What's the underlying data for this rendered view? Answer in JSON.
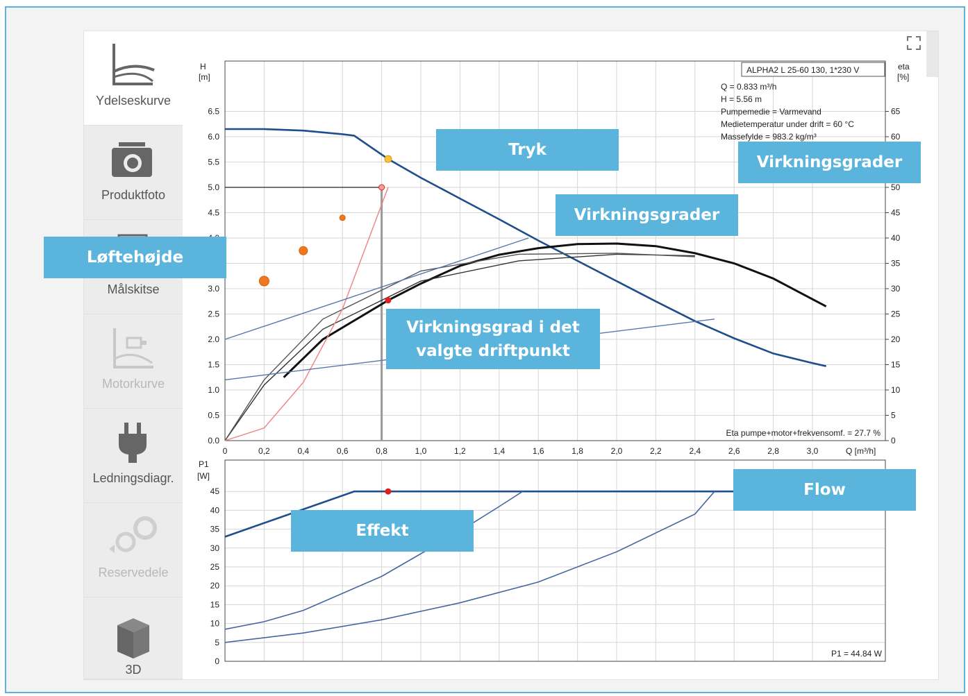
{
  "sidebar": {
    "items": [
      {
        "label": "Ydelseskurve",
        "icon": "performance-curve-icon",
        "state": "active"
      },
      {
        "label": "Produktfoto",
        "icon": "camera-icon",
        "state": "normal"
      },
      {
        "label": "Målskitse",
        "icon": "dimension-sketch-icon",
        "state": "normal"
      },
      {
        "label": "Motorkurve",
        "icon": "motor-curve-icon",
        "state": "disabled"
      },
      {
        "label": "Ledningsdiagr.",
        "icon": "plug-icon",
        "state": "normal"
      },
      {
        "label": "Reservedele",
        "icon": "spare-parts-icon",
        "state": "disabled"
      },
      {
        "label": "3D",
        "icon": "cube-3d-icon",
        "state": "normal"
      }
    ]
  },
  "chart": {
    "pump_name": "ALPHA2 L 25-60 130, 1*230 V",
    "info_lines": [
      "Q = 0.833 m³/h",
      "H = 5.56 m",
      "Pumpemedie = Varmevand",
      "Medietemperatur under drift = 60 °C",
      "Massefylde = 983.2 kg/m³"
    ],
    "eta_note": "Eta pumpe+motor+frekvensomf. = 27.7 %",
    "p1_note": "P1 = 44.84 W",
    "upper": {
      "ylabel_left": [
        "H",
        "[m]"
      ],
      "ylabel_right": [
        "eta",
        "[%]"
      ],
      "xlabel": "Q [m³/h]",
      "x_ticks": [
        "0",
        "0,2",
        "0,4",
        "0,6",
        "0,8",
        "1,0",
        "1,2",
        "1,4",
        "1,6",
        "1,8",
        "2,0",
        "2,2",
        "2,4",
        "2,6",
        "2,8",
        "3,0"
      ],
      "y_ticks": [
        "0.0",
        "0.5",
        "1.0",
        "1.5",
        "2.0",
        "2.5",
        "3.0",
        "3.5",
        "4.0",
        "4.5",
        "5.0",
        "5.5",
        "6.0",
        "6.5"
      ],
      "eta_ticks": [
        "0",
        "5",
        "10",
        "15",
        "20",
        "25",
        "30",
        "35",
        "40",
        "45",
        "50",
        "55",
        "60",
        "65"
      ]
    },
    "lower": {
      "ylabel_left": [
        "P1",
        "[W]"
      ],
      "y_ticks": [
        "0",
        "5",
        "10",
        "15",
        "20",
        "25",
        "30",
        "35",
        "40",
        "45"
      ]
    }
  },
  "chart_data": [
    {
      "type": "line",
      "title": "ALPHA2 L 25-60 130, 1*230 V",
      "xlabel": "Q [m³/h]",
      "ylabel": "H [m]",
      "y2label": "eta [%]",
      "xlim": [
        0,
        3.3
      ],
      "ylim": [
        0,
        7.5
      ],
      "y2lim": [
        0,
        75
      ],
      "grid": true,
      "series": [
        {
          "name": "Tryk",
          "axis": "H",
          "x": [
            0,
            0.2,
            0.4,
            0.6,
            0.66,
            0.833,
            1.0,
            1.2,
            1.4,
            1.6,
            1.8,
            2.0,
            2.2,
            2.4,
            2.6,
            2.8,
            3.0,
            3.07
          ],
          "y": [
            6.15,
            6.15,
            6.12,
            6.05,
            6.02,
            5.56,
            5.19,
            4.78,
            4.37,
            3.95,
            3.55,
            3.15,
            2.75,
            2.36,
            2.02,
            1.72,
            1.53,
            1.47
          ]
        },
        {
          "name": "Virkningsgrader",
          "axis": "eta",
          "x": [
            0.3,
            0.5,
            0.833,
            1.0,
            1.2,
            1.4,
            1.6,
            1.8,
            2.0,
            2.2,
            2.4,
            2.6,
            2.8,
            3.07
          ],
          "y": [
            12.5,
            20,
            27.7,
            31,
            34.5,
            36.7,
            38,
            38.8,
            38.9,
            38.4,
            37,
            35,
            32,
            26.5
          ]
        },
        {
          "axis": "eta",
          "x": [
            0,
            0.2,
            0.5,
            1.0,
            1.5,
            2.0,
            2.4
          ],
          "y": [
            0,
            11,
            22,
            31.5,
            35.5,
            36.8,
            36.5
          ]
        },
        {
          "axis": "eta",
          "x": [
            0,
            0.2,
            0.5,
            1.0,
            1.5,
            2.0,
            2.4
          ],
          "y": [
            0,
            12,
            24,
            33.5,
            36.8,
            37,
            36.3
          ]
        },
        {
          "axis": "H",
          "x": [
            0,
            0.2,
            0.4,
            0.6,
            0.833
          ],
          "y": [
            0,
            0.25,
            1.15,
            2.6,
            5.0
          ]
        },
        {
          "axis": "H",
          "x": [
            0,
            1.55
          ],
          "y": [
            2.0,
            4.0
          ]
        },
        {
          "axis": "H",
          "x": [
            0,
            2.5
          ],
          "y": [
            1.2,
            2.4
          ]
        }
      ],
      "points": [
        {
          "axis": "H",
          "x": 0.833,
          "y": 5.56
        },
        {
          "axis": "H",
          "x": 0.8,
          "y": 5.0
        },
        {
          "axis": "eta",
          "x": 0.833,
          "y": 27.7
        },
        {
          "axis": "H",
          "x": 0.2,
          "y": 3.15
        },
        {
          "axis": "H",
          "x": 0.4,
          "y": 3.75
        },
        {
          "axis": "H",
          "x": 0.6,
          "y": 4.4
        }
      ]
    },
    {
      "type": "line",
      "xlabel": "Q [m³/h]",
      "ylabel": "P1 [W]",
      "xlim": [
        0,
        3.3
      ],
      "ylim": [
        0,
        50
      ],
      "grid": true,
      "series": [
        {
          "name": "Effekt",
          "x": [
            0,
            0.66,
            0.833,
            1.5,
            2.0,
            2.5,
            3.07
          ],
          "y": [
            33,
            45,
            45,
            45,
            45,
            45,
            45
          ]
        },
        {
          "x": [
            0,
            0.2,
            0.4,
            0.6,
            0.8,
            1.0,
            1.2,
            1.4,
            1.52
          ],
          "y": [
            8.5,
            10.5,
            13.5,
            18,
            22.5,
            28.5,
            34.5,
            41,
            45
          ]
        },
        {
          "x": [
            0,
            0.4,
            0.8,
            1.2,
            1.6,
            2.0,
            2.4,
            2.5
          ],
          "y": [
            5,
            7.5,
            11,
            15.5,
            21,
            29,
            39,
            45
          ]
        }
      ],
      "points": [
        {
          "x": 0.833,
          "y": 45
        }
      ]
    }
  ],
  "callouts": {
    "tryk": "Tryk",
    "virk_right": "Virkningsgrader",
    "virk_mid": "Virkningsgrader",
    "loftehojde": "Løftehøjde",
    "virk_point": "Virkningsgrad i det valgte driftpunkt",
    "flow": "Flow",
    "effekt": "Effekt"
  },
  "colors": {
    "callout": "#5ab4dc",
    "pump_curve": "#1f4e8c",
    "efficiency": "#111111",
    "system_curve": "#f28080",
    "operating_point": "#f5c542",
    "marker_red": "#e02020",
    "marker_orange": "#f07820"
  }
}
